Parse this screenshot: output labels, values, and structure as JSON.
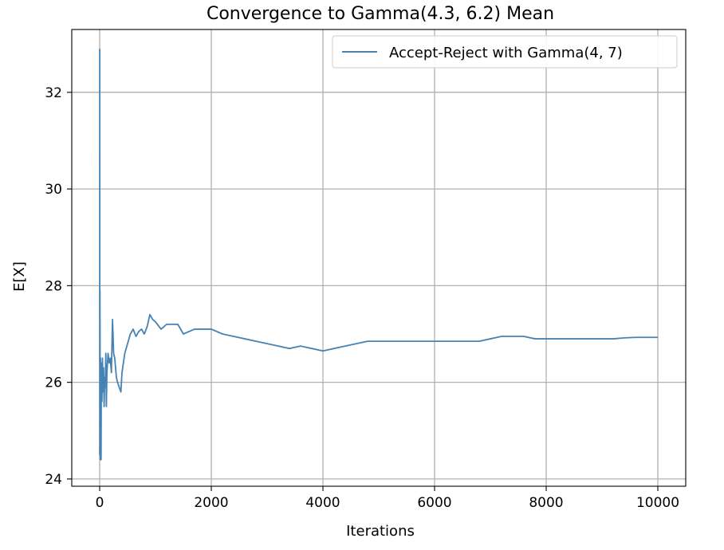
{
  "chart_data": {
    "type": "line",
    "title": "Convergence to Gamma(4.3, 6.2) Mean",
    "xlabel": "Iterations",
    "ylabel": "E[X]",
    "xlim": [
      -500,
      10500
    ],
    "ylim": [
      23.85,
      33.3
    ],
    "xticks": [
      0,
      2000,
      4000,
      6000,
      8000,
      10000
    ],
    "yticks": [
      24,
      26,
      28,
      30,
      32
    ],
    "grid": true,
    "legend_position": "upper right",
    "series": [
      {
        "name": "Accept-Reject with Gamma(4, 7)",
        "color": "#4682b4",
        "x": [
          1,
          2,
          5,
          10,
          15,
          20,
          25,
          30,
          40,
          50,
          60,
          70,
          80,
          90,
          100,
          110,
          120,
          130,
          150,
          170,
          190,
          210,
          230,
          250,
          270,
          300,
          320,
          350,
          380,
          400,
          450,
          500,
          550,
          600,
          650,
          700,
          750,
          800,
          850,
          900,
          950,
          1000,
          1100,
          1200,
          1300,
          1400,
          1500,
          1600,
          1700,
          1800,
          1900,
          2000,
          2200,
          2400,
          2600,
          2800,
          3000,
          3200,
          3400,
          3600,
          3800,
          4000,
          4200,
          4400,
          4600,
          4800,
          5000,
          5200,
          5400,
          5600,
          5800,
          6000,
          6200,
          6400,
          6600,
          6800,
          7000,
          7200,
          7400,
          7600,
          7800,
          8000,
          8200,
          8400,
          8600,
          8800,
          9000,
          9200,
          9400,
          9600,
          9800,
          10000
        ],
        "y": [
          32.9,
          24.5,
          27.9,
          24.4,
          26.5,
          25.0,
          24.4,
          26.4,
          25.6,
          26.5,
          25.8,
          26.3,
          25.5,
          26.1,
          25.9,
          26.6,
          25.5,
          26.2,
          26.6,
          26.4,
          26.5,
          26.2,
          27.3,
          26.6,
          26.5,
          26.1,
          26.0,
          25.9,
          25.8,
          26.2,
          26.6,
          26.8,
          27.0,
          27.1,
          26.95,
          27.05,
          27.1,
          27.0,
          27.15,
          27.4,
          27.3,
          27.25,
          27.1,
          27.2,
          27.2,
          27.2,
          27.0,
          27.05,
          27.1,
          27.1,
          27.1,
          27.1,
          27.0,
          26.95,
          26.9,
          26.85,
          26.8,
          26.75,
          26.7,
          26.75,
          26.7,
          26.65,
          26.7,
          26.75,
          26.8,
          26.85,
          26.85,
          26.85,
          26.85,
          26.85,
          26.85,
          26.85,
          26.85,
          26.85,
          26.85,
          26.85,
          26.9,
          26.95,
          26.95,
          26.95,
          26.9,
          26.9,
          26.9,
          26.9,
          26.9,
          26.9,
          26.9,
          26.9,
          26.92,
          26.93,
          26.93,
          26.93
        ]
      }
    ]
  }
}
